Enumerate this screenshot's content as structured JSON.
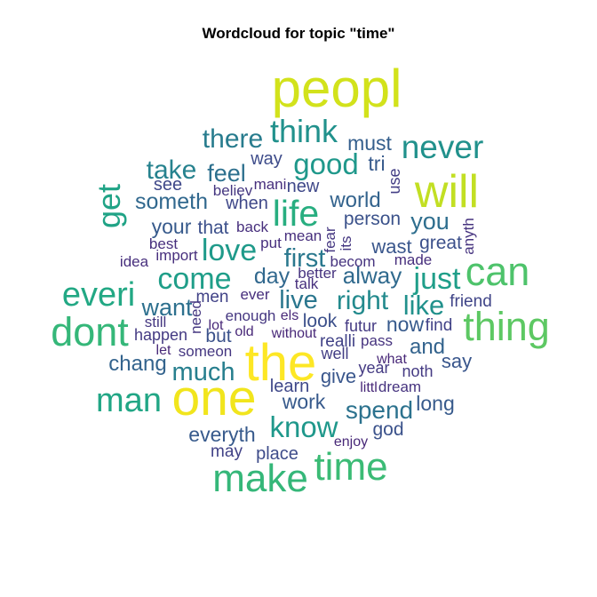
{
  "chart_data": {
    "type": "wordcloud",
    "title": "Wordcloud for topic \"time\"",
    "colors": {
      "viridis": [
        "#3b528b",
        "#31688e",
        "#21908c",
        "#35b779",
        "#5dc863",
        "#b5de2b",
        "#fde725"
      ]
    },
    "words": [
      {
        "word": "peopl",
        "weight": 1.0,
        "color": "#d2e21b"
      },
      {
        "word": "the",
        "weight": 0.97,
        "color": "#fde725"
      },
      {
        "word": "one",
        "weight": 0.95,
        "color": "#f1e51d"
      },
      {
        "word": "will",
        "weight": 0.86,
        "color": "#c2df23"
      },
      {
        "word": "thing",
        "weight": 0.74,
        "color": "#5dc863"
      },
      {
        "word": "can",
        "weight": 0.74,
        "color": "#4ec36b"
      },
      {
        "word": "dont",
        "weight": 0.74,
        "color": "#35b779"
      },
      {
        "word": "make",
        "weight": 0.72,
        "color": "#35b779"
      },
      {
        "word": "time",
        "weight": 0.72,
        "color": "#3bbb75"
      },
      {
        "word": "life",
        "weight": 0.66,
        "color": "#28ae80"
      },
      {
        "word": "everi",
        "weight": 0.6,
        "color": "#22a884"
      },
      {
        "word": "man",
        "weight": 0.6,
        "color": "#21a685"
      },
      {
        "word": "never",
        "weight": 0.58,
        "color": "#21918c"
      },
      {
        "word": "get",
        "weight": 0.56,
        "color": "#20a386"
      },
      {
        "word": "think",
        "weight": 0.56,
        "color": "#21918c"
      },
      {
        "word": "love",
        "weight": 0.52,
        "color": "#1f9a8a"
      },
      {
        "word": "come",
        "weight": 0.52,
        "color": "#1f9e89"
      },
      {
        "word": "just",
        "weight": 0.52,
        "color": "#1f9e89"
      },
      {
        "word": "know",
        "weight": 0.5,
        "color": "#1f988b"
      },
      {
        "word": "good",
        "weight": 0.5,
        "color": "#1f988b"
      },
      {
        "word": "like",
        "weight": 0.48,
        "color": "#21918c"
      },
      {
        "word": "right",
        "weight": 0.46,
        "color": "#238a8d"
      },
      {
        "word": "take",
        "weight": 0.46,
        "color": "#26828e"
      },
      {
        "word": "there",
        "weight": 0.45,
        "color": "#287c8e"
      },
      {
        "word": "much",
        "weight": 0.44,
        "color": "#277f8e"
      },
      {
        "word": "first",
        "weight": 0.44,
        "color": "#2a788e"
      },
      {
        "word": "live",
        "weight": 0.44,
        "color": "#2a768e"
      },
      {
        "word": "spend",
        "weight": 0.42,
        "color": "#2c728e"
      },
      {
        "word": "want",
        "weight": 0.4,
        "color": "#2d708e"
      },
      {
        "word": "feel",
        "weight": 0.4,
        "color": "#2d708e"
      },
      {
        "word": "you",
        "weight": 0.4,
        "color": "#2e6e8e"
      },
      {
        "word": "alway",
        "weight": 0.38,
        "color": "#306a8e"
      },
      {
        "word": "someth",
        "weight": 0.36,
        "color": "#31688e"
      },
      {
        "word": "chang",
        "weight": 0.34,
        "color": "#33638d"
      },
      {
        "word": "day",
        "weight": 0.36,
        "color": "#31688e"
      },
      {
        "word": "world",
        "weight": 0.34,
        "color": "#33638d"
      },
      {
        "word": "and",
        "weight": 0.34,
        "color": "#33638d"
      },
      {
        "word": "must",
        "weight": 0.32,
        "color": "#355f8d"
      },
      {
        "word": "everyth",
        "weight": 0.3,
        "color": "#375a8c"
      },
      {
        "word": "work",
        "weight": 0.3,
        "color": "#375a8c"
      },
      {
        "word": "your",
        "weight": 0.3,
        "color": "#375a8c"
      },
      {
        "word": "long",
        "weight": 0.3,
        "color": "#375a8c"
      },
      {
        "word": "now",
        "weight": 0.3,
        "color": "#375a8c"
      },
      {
        "word": "tri",
        "weight": 0.3,
        "color": "#375a8c"
      },
      {
        "word": "give",
        "weight": 0.28,
        "color": "#39568c"
      },
      {
        "word": "say",
        "weight": 0.28,
        "color": "#39568c"
      },
      {
        "word": "wast",
        "weight": 0.28,
        "color": "#39568c"
      },
      {
        "word": "god",
        "weight": 0.27,
        "color": "#3b528b"
      },
      {
        "word": "but",
        "weight": 0.27,
        "color": "#3b528b"
      },
      {
        "word": "person",
        "weight": 0.27,
        "color": "#3b528b"
      },
      {
        "word": "that",
        "weight": 0.26,
        "color": "#3c508b"
      },
      {
        "word": "look",
        "weight": 0.26,
        "color": "#3c508b"
      },
      {
        "word": "great",
        "weight": 0.26,
        "color": "#3c508b"
      },
      {
        "word": "way",
        "weight": 0.25,
        "color": "#3e4c8a"
      },
      {
        "word": "place",
        "weight": 0.25,
        "color": "#3e4c8a"
      },
      {
        "word": "see",
        "weight": 0.24,
        "color": "#3f4889"
      },
      {
        "word": "when",
        "weight": 0.24,
        "color": "#3f4889"
      },
      {
        "word": "new",
        "weight": 0.24,
        "color": "#3f4889"
      },
      {
        "word": "learn",
        "weight": 0.24,
        "color": "#3f4889"
      },
      {
        "word": "friend",
        "weight": 0.23,
        "color": "#404588"
      },
      {
        "word": "men",
        "weight": 0.22,
        "color": "#414287"
      },
      {
        "word": "may",
        "weight": 0.22,
        "color": "#414287"
      },
      {
        "word": "find",
        "weight": 0.22,
        "color": "#414287"
      },
      {
        "word": "realli",
        "weight": 0.22,
        "color": "#414287"
      },
      {
        "word": "well",
        "weight": 0.21,
        "color": "#433e85"
      },
      {
        "word": "use",
        "weight": 0.21,
        "color": "#433e85"
      },
      {
        "word": "futur",
        "weight": 0.2,
        "color": "#443a83"
      },
      {
        "word": "year",
        "weight": 0.2,
        "color": "#443a83"
      },
      {
        "word": "noth",
        "weight": 0.2,
        "color": "#443a83"
      },
      {
        "word": "happen",
        "weight": 0.2,
        "color": "#443a83"
      },
      {
        "word": "someon",
        "weight": 0.19,
        "color": "#453781"
      },
      {
        "word": "believ",
        "weight": 0.19,
        "color": "#453781"
      },
      {
        "word": "still",
        "weight": 0.19,
        "color": "#453781"
      },
      {
        "word": "enough",
        "weight": 0.19,
        "color": "#453781"
      },
      {
        "word": "need",
        "weight": 0.19,
        "color": "#453781"
      },
      {
        "word": "fear",
        "weight": 0.19,
        "color": "#453781"
      },
      {
        "word": "its",
        "weight": 0.19,
        "color": "#453781"
      },
      {
        "word": "anyth",
        "weight": 0.18,
        "color": "#46337f"
      },
      {
        "word": "better",
        "weight": 0.18,
        "color": "#46337f"
      },
      {
        "word": "becom",
        "weight": 0.18,
        "color": "#46337f"
      },
      {
        "word": "dream",
        "weight": 0.18,
        "color": "#46337f"
      },
      {
        "word": "pass",
        "weight": 0.18,
        "color": "#46337f"
      },
      {
        "word": "idea",
        "weight": 0.17,
        "color": "#472f7d"
      },
      {
        "word": "best",
        "weight": 0.17,
        "color": "#472f7d"
      },
      {
        "word": "import",
        "weight": 0.17,
        "color": "#472f7d"
      },
      {
        "word": "put",
        "weight": 0.17,
        "color": "#472f7d"
      },
      {
        "word": "mean",
        "weight": 0.17,
        "color": "#472f7d"
      },
      {
        "word": "back",
        "weight": 0.17,
        "color": "#472f7d"
      },
      {
        "word": "mani",
        "weight": 0.17,
        "color": "#472f7d"
      },
      {
        "word": "made",
        "weight": 0.17,
        "color": "#472f7d"
      },
      {
        "word": "talk",
        "weight": 0.17,
        "color": "#472f7d"
      },
      {
        "word": "ever",
        "weight": 0.17,
        "color": "#472f7d"
      },
      {
        "word": "els",
        "weight": 0.16,
        "color": "#482878"
      },
      {
        "word": "old",
        "weight": 0.16,
        "color": "#482878"
      },
      {
        "word": "without",
        "weight": 0.16,
        "color": "#482878"
      },
      {
        "word": "let",
        "weight": 0.16,
        "color": "#482878"
      },
      {
        "word": "lot",
        "weight": 0.16,
        "color": "#482878"
      },
      {
        "word": "what",
        "weight": 0.16,
        "color": "#482878"
      },
      {
        "word": "littl",
        "weight": 0.16,
        "color": "#482878"
      },
      {
        "word": "enjoy",
        "weight": 0.16,
        "color": "#482878"
      }
    ]
  }
}
